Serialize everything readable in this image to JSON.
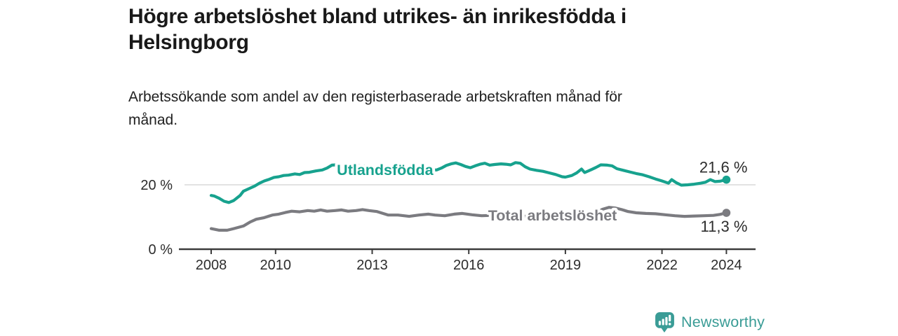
{
  "header": {
    "title": "Högre arbetslöshet bland utrikes- än inrikesfödda i Helsingborg",
    "title_lines": [
      "Högre arbetslöshet bland utrikes- än inrikesfödda i",
      "Helsingborg"
    ],
    "subtitle": "Arbetssökande som andel av den registerbaserade arbetskraften månad för månad.",
    "subtitle_lines": [
      "Arbetssökande som andel av den registerbaserade arbetskraften månad för",
      "månad."
    ]
  },
  "footer": {
    "brand": "Newsworthy",
    "logo_icon": "newsworthy-speech-bubble-bar-chart-icon"
  },
  "colors": {
    "series_foreign_born": "#17a28e",
    "series_total": "#7b7b80",
    "axis": "#3c3c3c",
    "tick_label": "#2d2d2d",
    "grid": "#d9d9d9",
    "annotation": "#2d2d2d",
    "title": "#191919",
    "brand_teal": "#3a9c96"
  },
  "chart_data": {
    "type": "line",
    "title": "Högre arbetslöshet bland utrikes- än inrikesfödda i Helsingborg",
    "subtitle": "Arbetssökande som andel av den registerbaserade arbetskraften månad för månad.",
    "unit": "%",
    "grid": "y-only",
    "legend_position": "inline-on-line",
    "x_axis": {
      "range": [
        2007.0,
        2024.9
      ],
      "ticks": [
        2008,
        2010,
        2013,
        2016,
        2019,
        2022,
        2024
      ],
      "tick_labels": [
        "2008",
        "2010",
        "2013",
        "2016",
        "2019",
        "2022",
        "2024"
      ]
    },
    "y_axis": {
      "range": [
        0,
        29
      ],
      "ticks": [
        {
          "value": 0,
          "label": "0 %",
          "gridline": false
        },
        {
          "value": 20,
          "label": "20 %",
          "gridline": true
        }
      ]
    },
    "series": [
      {
        "name": "Utlandsfödda",
        "color": "#17a28e",
        "end_value": 21.6,
        "end_label": "21,6 %",
        "end_label_position": "above",
        "inline_label": {
          "text": "Utlandsfödda",
          "year": 2013.4,
          "value": 23.0
        },
        "points": [
          [
            2008.0,
            16.7
          ],
          [
            2008.1,
            16.5
          ],
          [
            2008.25,
            15.8
          ],
          [
            2008.4,
            14.9
          ],
          [
            2008.55,
            14.5
          ],
          [
            2008.7,
            15.1
          ],
          [
            2008.9,
            16.7
          ],
          [
            2009.0,
            18.0
          ],
          [
            2009.15,
            18.7
          ],
          [
            2009.35,
            19.6
          ],
          [
            2009.5,
            20.5
          ],
          [
            2009.65,
            21.2
          ],
          [
            2009.8,
            21.7
          ],
          [
            2009.95,
            22.3
          ],
          [
            2010.1,
            22.5
          ],
          [
            2010.25,
            22.9
          ],
          [
            2010.4,
            23.0
          ],
          [
            2010.6,
            23.4
          ],
          [
            2010.75,
            23.2
          ],
          [
            2010.9,
            23.8
          ],
          [
            2011.05,
            23.9
          ],
          [
            2011.25,
            24.3
          ],
          [
            2011.45,
            24.6
          ],
          [
            2011.6,
            25.2
          ],
          [
            2011.75,
            26.1
          ],
          [
            2011.9,
            26.2
          ],
          [
            2012.1,
            26.0
          ],
          [
            2012.3,
            26.2
          ],
          [
            2012.5,
            26.0
          ],
          [
            2012.75,
            25.8
          ],
          [
            2013.0,
            25.6
          ],
          [
            2013.25,
            25.4
          ],
          [
            2013.5,
            25.2
          ],
          [
            2013.75,
            25.0
          ],
          [
            2014.0,
            24.9
          ],
          [
            2014.25,
            24.8
          ],
          [
            2014.5,
            24.7
          ],
          [
            2014.75,
            24.6
          ],
          [
            2015.0,
            24.6
          ],
          [
            2015.15,
            25.2
          ],
          [
            2015.3,
            26.0
          ],
          [
            2015.45,
            26.5
          ],
          [
            2015.6,
            26.8
          ],
          [
            2015.75,
            26.3
          ],
          [
            2015.9,
            25.7
          ],
          [
            2016.05,
            25.3
          ],
          [
            2016.2,
            25.9
          ],
          [
            2016.35,
            26.4
          ],
          [
            2016.5,
            26.7
          ],
          [
            2016.65,
            26.1
          ],
          [
            2016.8,
            26.3
          ],
          [
            2017.0,
            26.5
          ],
          [
            2017.15,
            26.4
          ],
          [
            2017.3,
            26.2
          ],
          [
            2017.45,
            26.9
          ],
          [
            2017.6,
            26.7
          ],
          [
            2017.75,
            25.6
          ],
          [
            2017.9,
            24.9
          ],
          [
            2018.1,
            24.5
          ],
          [
            2018.3,
            24.2
          ],
          [
            2018.5,
            23.7
          ],
          [
            2018.7,
            23.2
          ],
          [
            2018.9,
            22.5
          ],
          [
            2019.0,
            22.4
          ],
          [
            2019.2,
            22.9
          ],
          [
            2019.35,
            23.7
          ],
          [
            2019.5,
            24.9
          ],
          [
            2019.6,
            23.8
          ],
          [
            2019.8,
            24.7
          ],
          [
            2019.95,
            25.4
          ],
          [
            2020.1,
            26.2
          ],
          [
            2020.3,
            26.1
          ],
          [
            2020.45,
            25.9
          ],
          [
            2020.6,
            25.0
          ],
          [
            2020.8,
            24.5
          ],
          [
            2021.0,
            24.0
          ],
          [
            2021.2,
            23.5
          ],
          [
            2021.4,
            23.1
          ],
          [
            2021.6,
            22.5
          ],
          [
            2021.8,
            21.8
          ],
          [
            2022.0,
            21.2
          ],
          [
            2022.2,
            20.5
          ],
          [
            2022.3,
            21.6
          ],
          [
            2022.45,
            20.6
          ],
          [
            2022.6,
            19.9
          ],
          [
            2022.8,
            20.0
          ],
          [
            2023.0,
            20.2
          ],
          [
            2023.2,
            20.5
          ],
          [
            2023.35,
            20.8
          ],
          [
            2023.5,
            21.6
          ],
          [
            2023.65,
            21.0
          ],
          [
            2023.8,
            21.1
          ],
          [
            2024.0,
            21.6
          ]
        ]
      },
      {
        "name": "Total arbetslöshet",
        "color": "#7b7b80",
        "end_value": 11.3,
        "end_label": "11,3 %",
        "end_label_position": "below",
        "inline_label": {
          "text": "Total arbetslöshet",
          "year": 2018.6,
          "value": 8.9
        },
        "points": [
          [
            2008.0,
            6.4
          ],
          [
            2008.25,
            5.9
          ],
          [
            2008.5,
            5.9
          ],
          [
            2008.7,
            6.4
          ],
          [
            2009.0,
            7.2
          ],
          [
            2009.2,
            8.4
          ],
          [
            2009.4,
            9.3
          ],
          [
            2009.65,
            9.8
          ],
          [
            2009.9,
            10.6
          ],
          [
            2010.1,
            10.9
          ],
          [
            2010.3,
            11.4
          ],
          [
            2010.5,
            11.8
          ],
          [
            2010.75,
            11.6
          ],
          [
            2011.0,
            12.0
          ],
          [
            2011.2,
            11.8
          ],
          [
            2011.4,
            12.2
          ],
          [
            2011.6,
            11.8
          ],
          [
            2011.85,
            12.0
          ],
          [
            2012.05,
            12.2
          ],
          [
            2012.25,
            11.8
          ],
          [
            2012.5,
            12.0
          ],
          [
            2012.7,
            12.3
          ],
          [
            2012.9,
            12.0
          ],
          [
            2013.15,
            11.7
          ],
          [
            2013.5,
            10.6
          ],
          [
            2013.8,
            10.6
          ],
          [
            2014.15,
            10.2
          ],
          [
            2014.45,
            10.6
          ],
          [
            2014.75,
            10.9
          ],
          [
            2014.95,
            10.6
          ],
          [
            2015.25,
            10.4
          ],
          [
            2015.55,
            10.9
          ],
          [
            2015.8,
            11.1
          ],
          [
            2016.1,
            10.7
          ],
          [
            2016.4,
            10.4
          ],
          [
            2016.7,
            10.5
          ],
          [
            2017.0,
            10.6
          ],
          [
            2017.3,
            10.4
          ],
          [
            2017.6,
            10.3
          ],
          [
            2017.9,
            10.2
          ],
          [
            2018.2,
            10.3
          ],
          [
            2018.5,
            10.4
          ],
          [
            2018.8,
            10.5
          ],
          [
            2019.1,
            10.6
          ],
          [
            2019.4,
            10.7
          ],
          [
            2019.7,
            10.9
          ],
          [
            2019.95,
            11.4
          ],
          [
            2020.15,
            12.4
          ],
          [
            2020.35,
            13.0
          ],
          [
            2020.55,
            12.8
          ],
          [
            2020.75,
            12.3
          ],
          [
            2020.95,
            11.7
          ],
          [
            2021.2,
            11.3
          ],
          [
            2021.5,
            11.1
          ],
          [
            2021.8,
            11.0
          ],
          [
            2022.1,
            10.7
          ],
          [
            2022.4,
            10.4
          ],
          [
            2022.7,
            10.2
          ],
          [
            2023.0,
            10.3
          ],
          [
            2023.3,
            10.4
          ],
          [
            2023.6,
            10.5
          ],
          [
            2023.8,
            10.8
          ],
          [
            2024.0,
            11.3
          ]
        ]
      }
    ]
  }
}
